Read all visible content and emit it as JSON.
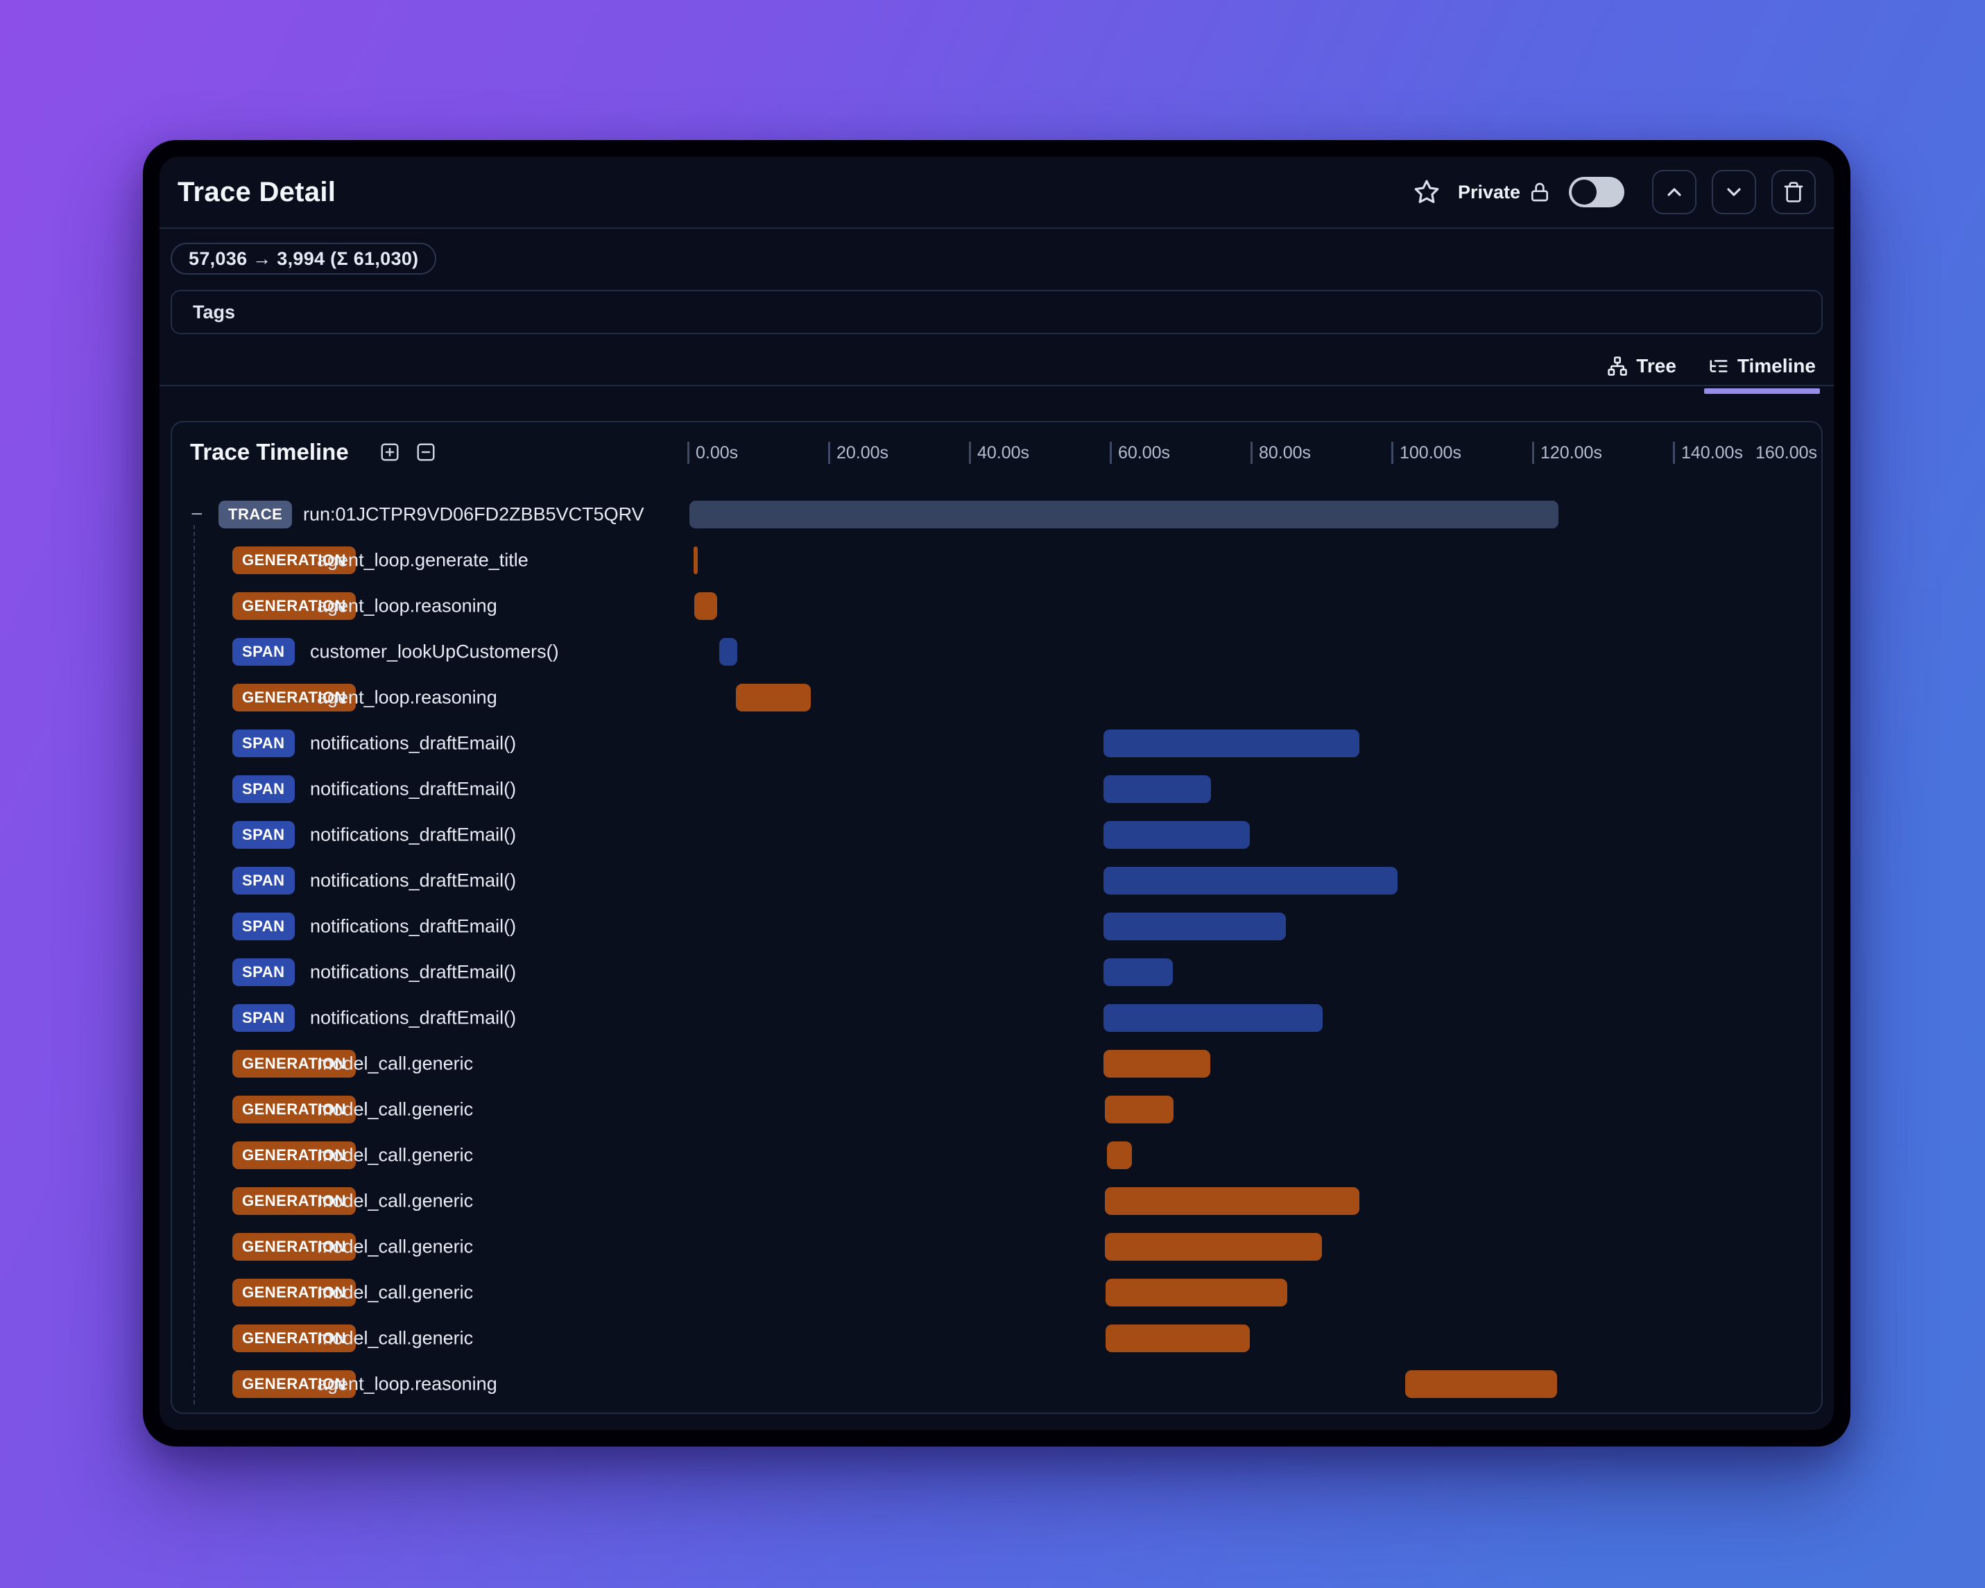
{
  "header": {
    "title": "Trace Detail",
    "privacy_label": "Private",
    "toggle_state": "off"
  },
  "token_badge": {
    "text": "57,036 → 3,994 (Σ 61,030)"
  },
  "tags": {
    "label": "Tags"
  },
  "view_tabs": {
    "tree_label": "Tree",
    "timeline_label": "Timeline",
    "active": "Timeline"
  },
  "timeline_panel": {
    "title": "Trace Timeline"
  },
  "chart_data": {
    "type": "bar",
    "subtype": "gantt-trace-timeline",
    "unit": "seconds",
    "axis_ticks": [
      "0.00s",
      "20.00s",
      "40.00s",
      "60.00s",
      "80.00s",
      "100.00s",
      "120.00s",
      "140.00s",
      "160.00s"
    ],
    "axis_range": [
      0,
      160
    ],
    "grid": false,
    "rows": [
      {
        "type": "TRACE",
        "label": "run:01JCTPR9VD06FD2ZBB5VCT5QRV",
        "start": 0.3,
        "end": 123.7
      },
      {
        "type": "GENERATION",
        "label": "agent_loop.generate_title",
        "start": 0.9,
        "end": 1.5
      },
      {
        "type": "GENERATION",
        "label": "agent_loop.reasoning",
        "start": 1.0,
        "end": 4.2
      },
      {
        "type": "SPAN",
        "label": "customer_lookUpCustomers()",
        "start": 4.5,
        "end": 7.1
      },
      {
        "type": "GENERATION",
        "label": "agent_loop.reasoning",
        "start": 6.9,
        "end": 17.5
      },
      {
        "type": "SPAN",
        "label": "notifications_draftEmail()",
        "start": 59.1,
        "end": 95.5
      },
      {
        "type": "SPAN",
        "label": "notifications_draftEmail()",
        "start": 59.1,
        "end": 74.4
      },
      {
        "type": "SPAN",
        "label": "notifications_draftEmail()",
        "start": 59.1,
        "end": 79.9
      },
      {
        "type": "SPAN",
        "label": "notifications_draftEmail()",
        "start": 59.1,
        "end": 100.9
      },
      {
        "type": "SPAN",
        "label": "notifications_draftEmail()",
        "start": 59.1,
        "end": 85.0
      },
      {
        "type": "SPAN",
        "label": "notifications_draftEmail()",
        "start": 59.1,
        "end": 69.0
      },
      {
        "type": "SPAN",
        "label": "notifications_draftEmail()",
        "start": 59.1,
        "end": 90.2
      },
      {
        "type": "GENERATION",
        "label": "model_call.generic",
        "start": 59.1,
        "end": 74.3
      },
      {
        "type": "GENERATION",
        "label": "model_call.generic",
        "start": 59.3,
        "end": 69.1
      },
      {
        "type": "GENERATION",
        "label": "model_call.generic",
        "start": 59.6,
        "end": 63.2
      },
      {
        "type": "GENERATION",
        "label": "model_call.generic",
        "start": 59.3,
        "end": 95.5
      },
      {
        "type": "GENERATION",
        "label": "model_call.generic",
        "start": 59.3,
        "end": 90.1
      },
      {
        "type": "GENERATION",
        "label": "model_call.generic",
        "start": 59.4,
        "end": 85.2
      },
      {
        "type": "GENERATION",
        "label": "model_call.generic",
        "start": 59.4,
        "end": 79.9
      },
      {
        "type": "GENERATION",
        "label": "agent_loop.reasoning",
        "start": 102.0,
        "end": 123.5
      }
    ]
  },
  "colors": {
    "trace_badge": "#4b5a7c",
    "trace_bar": "#354260",
    "generation_badge": "#a44d15",
    "generation_bar": "#a54d14",
    "span_badge": "#2e4bae",
    "span_bar": "#25408f",
    "active_tab_underline": "#978de8"
  }
}
